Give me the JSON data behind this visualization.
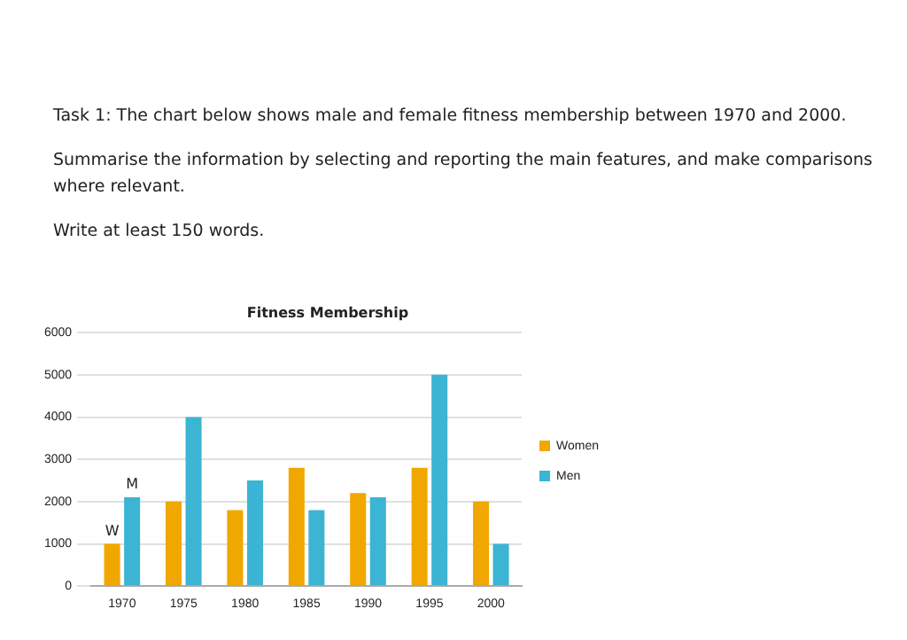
{
  "chart_data": {
    "type": "bar",
    "title": "Fitness Membership",
    "categories": [
      "1970",
      "1975",
      "1980",
      "1985",
      "1990",
      "1995",
      "2000"
    ],
    "series": [
      {
        "name": "Women",
        "color": "#f0a800",
        "values": [
          1000,
          2000,
          1800,
          2800,
          2200,
          2800,
          2000
        ]
      },
      {
        "name": "Men",
        "color": "#3cb4d4",
        "values": [
          2100,
          4000,
          2500,
          1800,
          2100,
          5000,
          1000
        ]
      }
    ],
    "ylim": [
      0,
      6000
    ],
    "yticks": [
      0,
      1000,
      2000,
      3000,
      4000,
      5000,
      6000
    ],
    "grid": "y",
    "legend": "right",
    "annotations": [
      "Task 1: The chart below shows male and female fitness membership between 1970 and 2000.",
      "Summarise the information by selecting and reporting the main features, and make comparisons where relevant.",
      "Write at least 150 words.",
      {
        "text": "W",
        "x": "1970",
        "y": 1000
      },
      {
        "text": "M",
        "x": "1970",
        "y": 2100
      }
    ]
  }
}
